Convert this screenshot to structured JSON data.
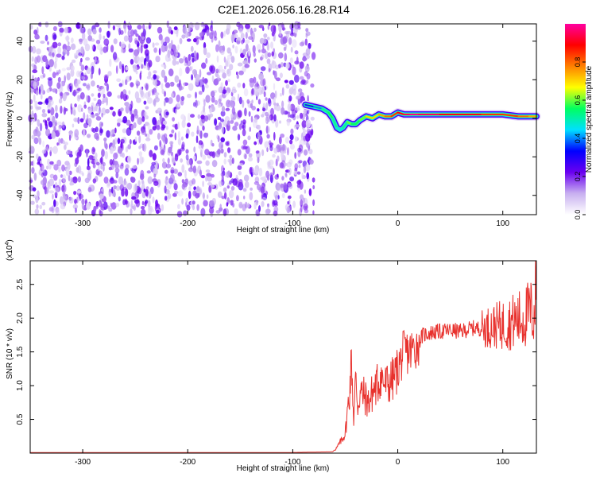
{
  "figure": {
    "title": "C2E1.2026.056.16.28.R14"
  },
  "chart_data": [
    {
      "type": "heatmap",
      "title": "C2E1.2026.056.16.28.R14",
      "xlabel": "Height of straight line (km)",
      "ylabel": "Frequency (Hz)",
      "xlim": [
        -350,
        132
      ],
      "ylim": [
        -50,
        49
      ],
      "x_ticks": [
        -300,
        -200,
        -100,
        0,
        100
      ],
      "y_ticks": [
        -40,
        -20,
        0,
        20,
        40
      ],
      "colorbar": {
        "label": "Normalized spectral amplitude",
        "range": [
          0.0,
          1.0
        ],
        "ticks": [
          "0.0",
          "0.2",
          "0.4",
          "0.6",
          "0.8"
        ],
        "colormap": [
          "#ffffff",
          "#c8b0f0",
          "#6a00f0",
          "#0000ff",
          "#00e0ff",
          "#00ff60",
          "#ffff00",
          "#ff8000",
          "#ff0000",
          "#ff00a0"
        ]
      },
      "noise_region": {
        "x_range": [
          -350,
          -80
        ],
        "freq_range": [
          -50,
          49
        ],
        "amplitude": [
          0.05,
          0.25
        ]
      },
      "signal_trace": {
        "x": [
          -88,
          -80,
          -72,
          -66,
          -62,
          -58,
          -55,
          -52,
          -48,
          -44,
          -40,
          -36,
          -30,
          -24,
          -18,
          -12,
          -6,
          0,
          6,
          12,
          20,
          30,
          40,
          60,
          80,
          100,
          115,
          125,
          132
        ],
        "frequency": [
          7,
          6,
          5,
          3,
          0,
          -5,
          -6,
          -5,
          -2,
          -3,
          -3,
          -1,
          1,
          0,
          2,
          1,
          1,
          3,
          2,
          2,
          2,
          2,
          2,
          2,
          2,
          2,
          1,
          1,
          1
        ],
        "amplitude": [
          0.35,
          0.4,
          0.5,
          0.55,
          0.5,
          0.45,
          0.45,
          0.5,
          0.6,
          0.55,
          0.55,
          0.6,
          0.7,
          0.7,
          0.75,
          0.8,
          0.85,
          0.9,
          0.95,
          0.98,
          0.95,
          0.95,
          0.9,
          0.9,
          0.85,
          0.85,
          0.8,
          0.75,
          0.7
        ]
      }
    },
    {
      "type": "line",
      "xlabel": "Height of straight line (km)",
      "ylabel": "SNR (10 * v/v)",
      "y_multiplier": "(x10",
      "y_multiplier_exp": "4",
      "xlim": [
        -350,
        132
      ],
      "ylim": [
        0,
        2.85
      ],
      "x_ticks": [
        -300,
        -200,
        -100,
        0,
        100
      ],
      "y_ticks": [
        0.5,
        1.0,
        1.5,
        2.0,
        2.5
      ],
      "y_tick_labels": [
        "0.5",
        "1.0",
        "1.5",
        "2.0",
        "2.5"
      ],
      "color": "#e8322e",
      "series": [
        {
          "x": [
            -350,
            -300,
            -200,
            -100,
            -62,
            -58,
            -54,
            -50,
            -46,
            -44,
            -42,
            -40,
            -38,
            -36,
            -32,
            -28,
            -24,
            -20,
            -16,
            -12,
            -8,
            -4,
            0,
            6,
            12,
            18,
            24,
            30,
            40,
            50,
            60,
            70,
            80,
            90,
            100,
            110,
            120,
            126,
            130,
            132
          ],
          "values": [
            0.01,
            0.01,
            0.01,
            0.01,
            0.02,
            0.08,
            0.18,
            0.3,
            0.9,
            1.4,
            0.5,
            1.1,
            0.7,
            0.9,
            0.85,
            0.75,
            0.9,
            1.0,
            1.15,
            1.0,
            1.05,
            1.1,
            1.25,
            1.5,
            1.5,
            1.6,
            1.75,
            1.78,
            1.8,
            1.82,
            1.8,
            1.85,
            1.85,
            1.88,
            1.9,
            1.95,
            2.0,
            2.1,
            2.05,
            2.7
          ]
        }
      ]
    }
  ]
}
